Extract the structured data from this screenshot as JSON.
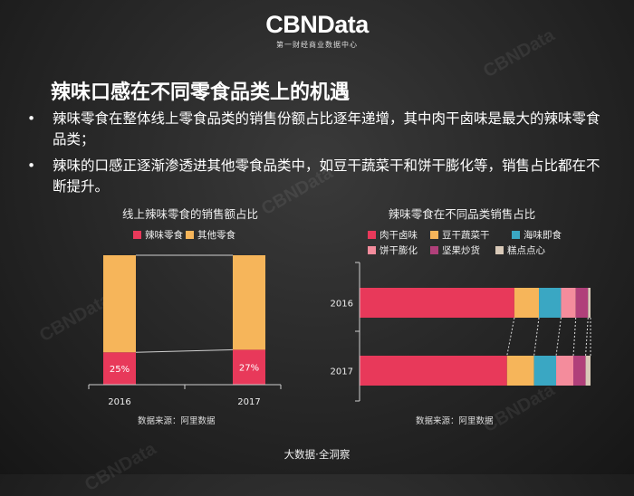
{
  "logo": {
    "main": "CBNData",
    "sub": "第一财经商业数据中心"
  },
  "watermark": "CBNData",
  "title": "辣味口感在不同零食品类上的机遇",
  "bullets": [
    "辣味零食在整体线上零食品类的销售份额占比逐年递增，其中肉干卤味是最大的辣味零食品类；",
    "辣味的口感正逐渐渗透进其他零食品类中，如豆干蔬菜干和饼干膨化等，销售占比都在不断提升。"
  ],
  "bullet_symbol": "•",
  "footer": "大数据·全洞察",
  "chart_data": [
    {
      "type": "bar",
      "stacked": true,
      "orientation": "vertical",
      "title": "线上辣味零食的销售额占比",
      "categories": [
        "2016",
        "2017"
      ],
      "series": [
        {
          "name": "辣味零食",
          "values": [
            25,
            27
          ],
          "labels": [
            "25%",
            "27%"
          ],
          "color": "#e8395a"
        },
        {
          "name": "其他零食",
          "values": [
            75,
            73
          ],
          "color": "#f6b55a"
        }
      ],
      "ylim": [
        0,
        100
      ],
      "legend": "top",
      "source": "数据来源：阿里数据"
    },
    {
      "type": "bar",
      "stacked": true,
      "orientation": "horizontal",
      "title": "辣味零食在不同品类销售占比",
      "categories": [
        "2016",
        "2017"
      ],
      "series": [
        {
          "name": "肉干卤味",
          "values": [
            63,
            60
          ],
          "color": "#e8395a"
        },
        {
          "name": "豆干蔬菜干",
          "values": [
            10,
            11
          ],
          "color": "#f6b55a"
        },
        {
          "name": "海味即食",
          "values": [
            9,
            9
          ],
          "color": "#3aa7c3"
        },
        {
          "name": "饼干膨化",
          "values": [
            6,
            7
          ],
          "color": "#f48c9c"
        },
        {
          "name": "坚果炒货",
          "values": [
            5,
            5
          ],
          "color": "#b0407a"
        },
        {
          "name": "糕点点心",
          "values": [
            1,
            2
          ],
          "color": "#d8c9b8"
        }
      ],
      "xlim": [
        0,
        94
      ],
      "legend": "top",
      "source": "数据来源：阿里数据"
    }
  ]
}
